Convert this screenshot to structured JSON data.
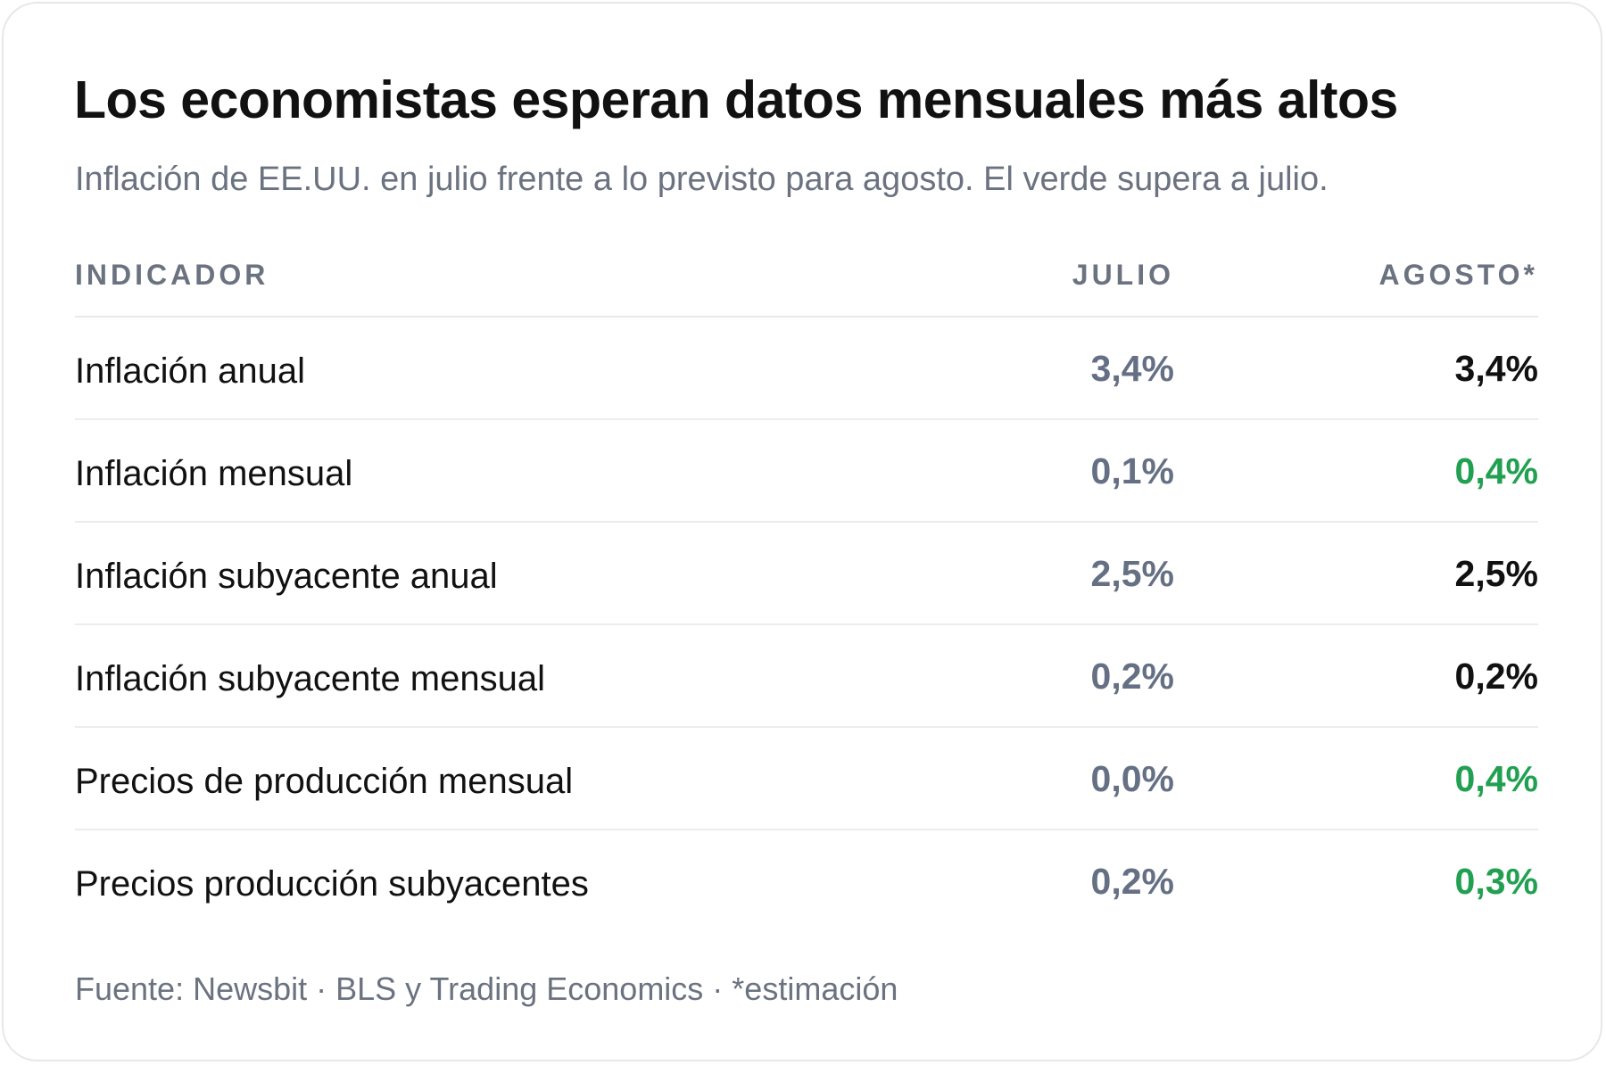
{
  "title": "Los economistas esperan datos mensuales más altos",
  "subtitle": "Inflación de EE.UU. en julio frente a lo previsto para agosto. El verde supera a julio.",
  "footer": "Fuente: Newsbit · BLS y Trading Economics · *estimación",
  "colors": {
    "higher_than_july": "#22a052",
    "july_values": "#667085",
    "august_default": "#111111"
  },
  "chart_data": {
    "type": "table",
    "columns": [
      "INDICADOR",
      "JULIO",
      "AGOSTO*"
    ],
    "rows": [
      {
        "indicador": "Inflación anual",
        "julio": "3,4%",
        "agosto": "3,4%",
        "higher": false
      },
      {
        "indicador": "Inflación mensual",
        "julio": "0,1%",
        "agosto": "0,4%",
        "higher": true
      },
      {
        "indicador": "Inflación subyacente anual",
        "julio": "2,5%",
        "agosto": "2,5%",
        "higher": false
      },
      {
        "indicador": "Inflación subyacente mensual",
        "julio": "0,2%",
        "agosto": "0,2%",
        "higher": false
      },
      {
        "indicador": "Precios de producción mensual",
        "julio": "0,0%",
        "agosto": "0,4%",
        "higher": true
      },
      {
        "indicador": "Precios producción subyacentes",
        "julio": "0,2%",
        "agosto": "0,3%",
        "higher": true
      }
    ]
  }
}
